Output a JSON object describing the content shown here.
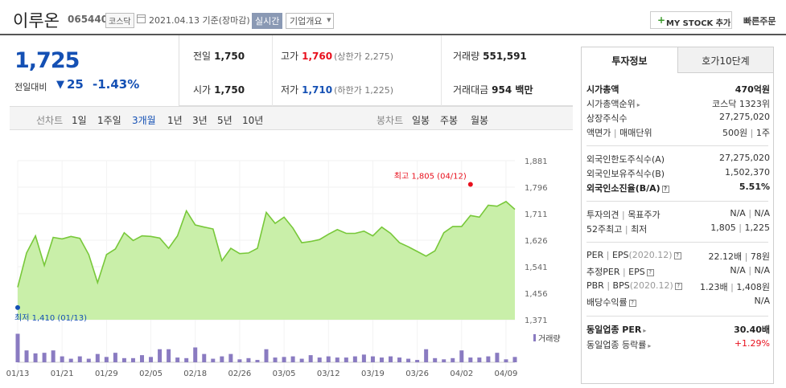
{
  "header": {
    "name": "이루온",
    "code": "065440",
    "market": "코스닥",
    "date": "2021.04.13 기준(장마감)",
    "realtime": "실시간",
    "company": "기업개요",
    "mystock": "MY STOCK 추가",
    "quick_order": "빠른주문"
  },
  "price": {
    "current": "1,725",
    "prev_label": "전일대비",
    "change": "25",
    "rate": "-1.43%"
  },
  "info": {
    "prev_close_label": "전일",
    "prev_close": "1,750",
    "open_label": "시가",
    "open": "1,750",
    "high_label": "고가",
    "high": "1,760",
    "upper_limit": "(상한가 2,275)",
    "low_label": "저가",
    "low": "1,710",
    "lower_limit": "(하한가 1,225)",
    "volume_label": "거래량",
    "volume": "551,591",
    "amount_label": "거래대금",
    "amount": "954 백만"
  },
  "tabs": {
    "line_label": "선차트",
    "line": [
      "1일",
      "1주일",
      "3개월",
      "1년",
      "3년",
      "5년",
      "10년"
    ],
    "active": "3개월",
    "candle_label": "봉차트",
    "candle": [
      "일봉",
      "주봉",
      "월봉"
    ]
  },
  "side": {
    "tab_active": "투자정보",
    "tab_inactive": "호가10단계",
    "rows": {
      "mktcap_k": "시가총액",
      "mktcap_v": "470억원",
      "rank_k": "시가총액순위",
      "rank_v": "코스닥 1323위",
      "shares_k": "상장주식수",
      "shares_v": "27,275,020",
      "par_k": "액면가",
      "par_k2": "매매단위",
      "par_v": "500원",
      "par_v2": "1주",
      "fl_limit_k": "외국인한도주식수(A)",
      "fl_limit_v": "27,275,020",
      "fl_hold_k": "외국인보유주식수(B)",
      "fl_hold_v": "1,502,370",
      "fl_ratio_k": "외국인소진율(B/A)",
      "fl_ratio_v": "5.51%",
      "opinion_k": "투자의견",
      "opinion_k2": "목표주가",
      "opinion_v": "N/A",
      "opinion_v2": "N/A",
      "w52_k": "52주최고",
      "w52_k2": "최저",
      "w52_v": "1,805",
      "w52_v2": "1,225",
      "per_k": "PER",
      "eps_k": "EPS",
      "per_date": "(2020.12)",
      "per_v": "22.12배",
      "eps_v": "78원",
      "est_per_k": "추정PER",
      "est_eps_k": "EPS",
      "est_per_v": "N/A",
      "est_eps_v": "N/A",
      "pbr_k": "PBR",
      "bps_k": "BPS",
      "pbr_date": "(2020.12)",
      "pbr_v": "1.23배",
      "bps_v": "1,408원",
      "div_k": "배당수익률",
      "div_v": "N/A",
      "ind_per_k": "동일업종 PER",
      "ind_per_v": "30.40배",
      "ind_rate_k": "동일업종 등락률",
      "ind_rate_v": "+1.29%"
    }
  },
  "chart_data": {
    "type": "area",
    "y_ticks": [
      "1,881",
      "1,796",
      "1,711",
      "1,626",
      "1,541",
      "1,456",
      "1,371"
    ],
    "ylim": [
      1371,
      1881
    ],
    "x_labels": [
      "01/13",
      "01/21",
      "01/29",
      "02/05",
      "02/18",
      "02/26",
      "03/05",
      "03/12",
      "03/19",
      "03/26",
      "04/02",
      "04/09"
    ],
    "high_label": "최고 1,805 (04/12)",
    "low_label": "최저 1,410 (01/13)",
    "volume_label": "거래량",
    "colors": {
      "line": "#78c83a",
      "fill": "#c9efa9",
      "volume": "#8a7bc1",
      "high": "#e8101d",
      "low": "#1450b4"
    },
    "prices": [
      1475,
      1585,
      1640,
      1545,
      1635,
      1630,
      1638,
      1632,
      1580,
      1490,
      1580,
      1598,
      1650,
      1625,
      1640,
      1638,
      1633,
      1600,
      1640,
      1720,
      1675,
      1668,
      1662,
      1560,
      1600,
      1583,
      1585,
      1600,
      1715,
      1680,
      1700,
      1665,
      1618,
      1622,
      1628,
      1645,
      1660,
      1648,
      1648,
      1655,
      1640,
      1668,
      1648,
      1618,
      1605,
      1590,
      1575,
      1592,
      1650,
      1670,
      1670,
      1705,
      1700,
      1738,
      1735,
      1750,
      1725
    ],
    "volumes": [
      48,
      20,
      15,
      16,
      20,
      10,
      6,
      10,
      6,
      14,
      9,
      16,
      7,
      7,
      12,
      9,
      22,
      22,
      8,
      7,
      25,
      14,
      6,
      10,
      14,
      5,
      7,
      4,
      22,
      8,
      9,
      10,
      6,
      12,
      8,
      10,
      8,
      8,
      10,
      13,
      10,
      8,
      10,
      8,
      6,
      4,
      22,
      7,
      5,
      7,
      20,
      8,
      8,
      10,
      16,
      5,
      9
    ]
  }
}
